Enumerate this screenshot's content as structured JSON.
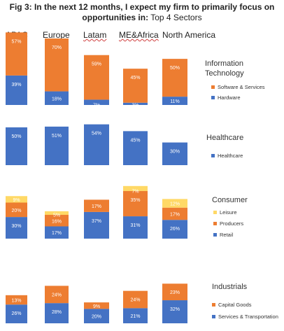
{
  "title": {
    "bold": "Fig 3: In the next 12 months, I expect my firm to primarily focus on opportunities in:",
    "normal": " Top 4 Sectors"
  },
  "regions": [
    "APAC",
    "Europe",
    "Latam",
    "ME&Africa",
    "North America"
  ],
  "colors": {
    "blue": "#4472c4",
    "orange": "#ed7d31",
    "yellow": "#ffd966"
  },
  "chart_data": [
    {
      "type": "bar",
      "stacked": true,
      "title": "Information Technology",
      "categories": [
        "APAC",
        "Europe",
        "Latam",
        "ME&Africa",
        "North America"
      ],
      "series": [
        {
          "name": "Hardware",
          "values": [
            39,
            18,
            7,
            3,
            11
          ],
          "color": "#4472c4"
        },
        {
          "name": "Software & Services",
          "values": [
            57,
            70,
            59,
            45,
            50
          ],
          "color": "#ed7d31"
        }
      ]
    },
    {
      "type": "bar",
      "stacked": true,
      "title": "Healthcare",
      "categories": [
        "APAC",
        "Europe",
        "Latam",
        "ME&Africa",
        "North America"
      ],
      "series": [
        {
          "name": "Healthcare",
          "values": [
            50,
            51,
            54,
            45,
            30
          ],
          "color": "#4472c4"
        }
      ]
    },
    {
      "type": "bar",
      "stacked": true,
      "title": "Consumer",
      "categories": [
        "APAC",
        "Europe",
        "Latam",
        "ME&Africa",
        "North America"
      ],
      "series": [
        {
          "name": "Retail",
          "values": [
            30,
            17,
            37,
            31,
            26
          ],
          "color": "#4472c4"
        },
        {
          "name": "Producers",
          "values": [
            20,
            16,
            17,
            35,
            17
          ],
          "color": "#ed7d31"
        },
        {
          "name": "Leisure",
          "values": [
            9,
            5,
            null,
            7,
            12
          ],
          "color": "#ffd966"
        }
      ]
    },
    {
      "type": "bar",
      "stacked": true,
      "title": "Industrials",
      "categories": [
        "APAC",
        "Europe",
        "Latam",
        "ME&Africa",
        "North America"
      ],
      "series": [
        {
          "name": "Services & Transportation",
          "values": [
            26,
            28,
            20,
            21,
            32
          ],
          "color": "#4472c4"
        },
        {
          "name": "Capital Goods",
          "values": [
            13,
            24,
            9,
            24,
            23
          ],
          "color": "#ed7d31"
        }
      ]
    }
  ]
}
